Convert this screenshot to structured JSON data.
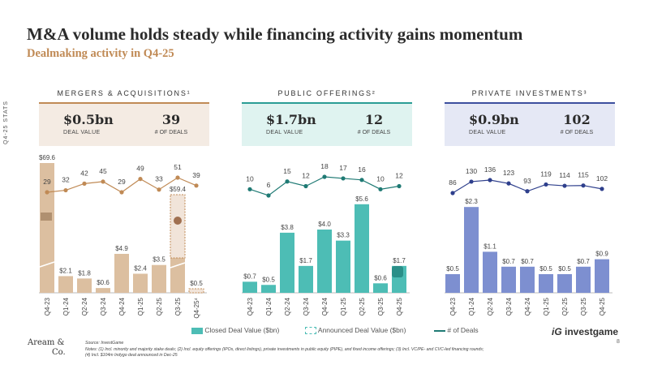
{
  "title": "M&A volume holds steady while financing activity gains momentum",
  "subtitle": "Dealmaking activity in Q4-25",
  "stats_side_label": "Q4-25 STATS",
  "sections": [
    {
      "heading": "MERGERS & ACQUISITIONS¹",
      "value": "$0.5bn",
      "value_label": "DEAL VALUE",
      "count": "39",
      "count_label": "# OF DEALS"
    },
    {
      "heading": "PUBLIC OFFERINGS²",
      "value": "$1.7bn",
      "value_label": "DEAL VALUE",
      "count": "12",
      "count_label": "# OF DEALS"
    },
    {
      "heading": "PRIVATE INVESTMENTS³",
      "value": "$0.9bn",
      "value_label": "DEAL VALUE",
      "count": "102",
      "count_label": "# OF DEALS"
    }
  ],
  "colors": {
    "ma_bar": "#dcbfa0",
    "ma_line": "#c08a55",
    "ma_box": "#f4ebe3",
    "po_bar": "#4dbdb5",
    "po_line": "#1f7a74",
    "po_box": "#dff3f0",
    "pi_bar": "#7d8fd0",
    "pi_line": "#2e3f8c",
    "pi_box": "#e5e8f5"
  },
  "chart_data": [
    {
      "type": "bar+line",
      "categories": [
        "Q4-23",
        "Q1-24",
        "Q2-24",
        "Q3-24",
        "Q4-24",
        "Q1-25",
        "Q2-25",
        "Q3-25",
        "Q4-25⁴"
      ],
      "series": [
        {
          "name": "Closed Deal Value ($bn)",
          "values": [
            69.6,
            2.1,
            1.8,
            0.6,
            4.9,
            2.4,
            3.5,
            null,
            null
          ]
        },
        {
          "name": "Announced Deal Value ($bn)",
          "values": [
            null,
            null,
            null,
            null,
            null,
            null,
            null,
            59.4,
            0.5
          ]
        },
        {
          "name": "# of Deals",
          "values": [
            29,
            32,
            42,
            45,
            29,
            49,
            33,
            51,
            39
          ]
        }
      ],
      "bar_labels": [
        "$69.6",
        "$2.1",
        "$1.8",
        "$0.6",
        "$4.9",
        "$2.4",
        "$3.5",
        "$59.4",
        "$0.5"
      ],
      "broken_axis": true
    },
    {
      "type": "bar+line",
      "categories": [
        "Q4-23",
        "Q1-24",
        "Q2-24",
        "Q3-24",
        "Q4-24",
        "Q1-25",
        "Q2-25",
        "Q3-25",
        "Q4-25"
      ],
      "series": [
        {
          "name": "Closed Deal Value ($bn)",
          "values": [
            0.7,
            0.5,
            3.8,
            1.7,
            4.0,
            3.3,
            5.6,
            0.6,
            1.7
          ]
        },
        {
          "name": "# of Deals",
          "values": [
            10,
            6,
            15,
            12,
            18,
            17,
            16,
            10,
            12
          ]
        }
      ],
      "bar_labels": [
        "$0.7",
        "$0.5",
        "$3.8",
        "$1.7",
        "$4.0",
        "$3.3",
        "$5.6",
        "$0.6",
        "$1.7"
      ]
    },
    {
      "type": "bar+line",
      "categories": [
        "Q4-23",
        "Q1-24",
        "Q2-24",
        "Q3-24",
        "Q4-24",
        "Q1-25",
        "Q2-25",
        "Q3-25",
        "Q4-25"
      ],
      "series": [
        {
          "name": "Closed Deal Value ($bn)",
          "values": [
            0.5,
            2.3,
            1.1,
            0.7,
            0.7,
            0.5,
            0.5,
            0.7,
            0.9
          ]
        },
        {
          "name": "# of Deals",
          "values": [
            86,
            130,
            136,
            123,
            93,
            119,
            114,
            115,
            102
          ]
        }
      ],
      "bar_labels": [
        "$0.5",
        "$2.3",
        "$1.1",
        "$0.7",
        "$0.7",
        "$0.5",
        "$0.5",
        "$0.7",
        "$0.9"
      ]
    }
  ],
  "legend": {
    "closed": "Closed Deal Value ($bn)",
    "announced": "Announced Deal Value ($bn)",
    "deals": "# of Deals"
  },
  "brand": {
    "line1": "Aream &",
    "line2": "Co.",
    "partner": "investgame",
    "partner_mark": "iG"
  },
  "source": "Source: InvestGame",
  "notes": "Notes: (1) Incl. minority and majority stake deals; (2) Incl. equity offerings (IPOs, direct listings), private investments in public equity (PIPE), and fixed income offerings; (3) Incl. VC/PE- and CVC-led financing rounds;",
  "notes2": "(4) Incl. $104m Indygo deal announced in Dec-25",
  "page_number": "8"
}
